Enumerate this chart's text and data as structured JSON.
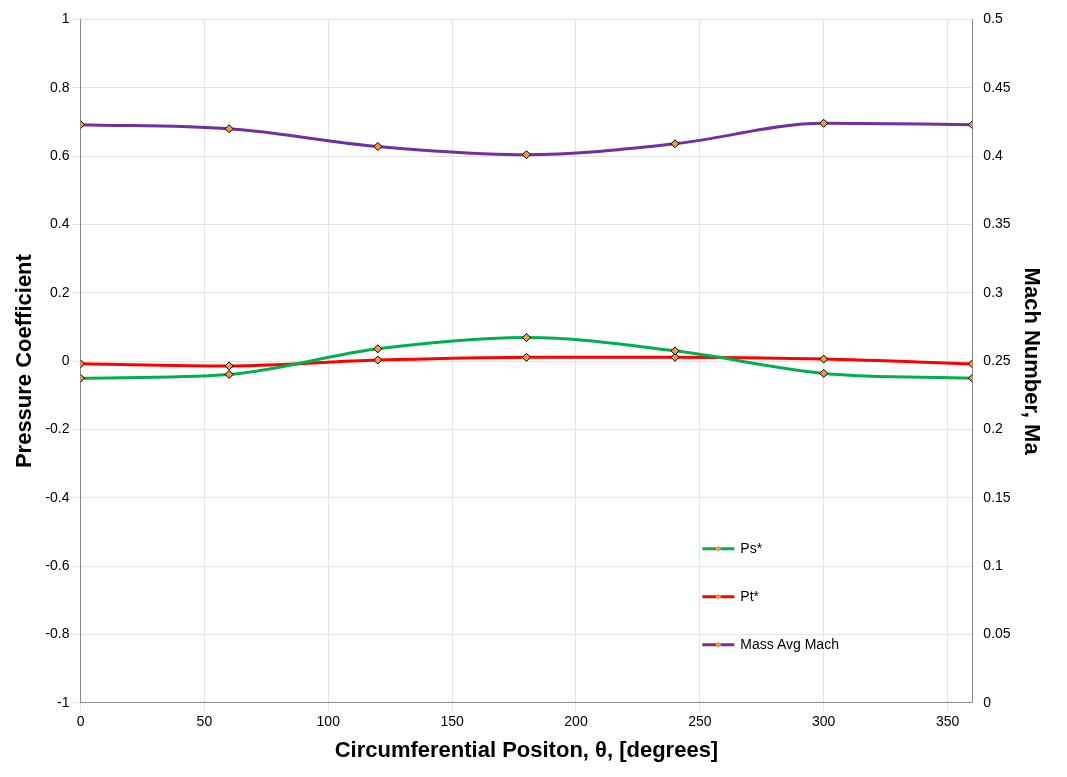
{
  "chart_data": {
    "type": "line",
    "xlabel": "Circumferential Positon, θ, [degrees]",
    "ylabel": "Pressure Coefficient",
    "y2label": "Mach Number, Ma",
    "x": [
      0,
      60,
      120,
      180,
      240,
      300,
      360
    ],
    "series": [
      {
        "name": "Ps*",
        "color": "#00b050",
        "values": [
          -0.05,
          -0.039,
          0.036,
          0.069,
          0.03,
          -0.036,
          -0.05
        ]
      },
      {
        "name": "Pt*",
        "color": "#ff0000",
        "values": [
          -0.008,
          -0.014,
          0.003,
          0.011,
          0.011,
          0.006,
          -0.008
        ]
      },
      {
        "name": "Mass Avg Mach",
        "color": "#7030a0",
        "axis": "y2",
        "values": [
          0.423,
          0.42,
          0.407,
          0.401,
          0.409,
          0.424,
          0.423
        ]
      }
    ],
    "xlim": [
      0,
      360
    ],
    "xticks": [
      0,
      50,
      100,
      150,
      200,
      250,
      300,
      350
    ],
    "ylim": [
      -1,
      1
    ],
    "yticks": [
      -1,
      -0.8,
      -0.6,
      -0.4,
      -0.2,
      0,
      0.2,
      0.4,
      0.6,
      0.8,
      1
    ],
    "y2lim": [
      0,
      0.5
    ],
    "y2ticks": [
      0,
      0.05,
      0.1,
      0.15,
      0.2,
      0.25,
      0.3,
      0.35,
      0.4,
      0.45,
      0.5
    ],
    "grid": true,
    "legend": "bottom right",
    "marker": "diamond",
    "line_style": "solid"
  }
}
